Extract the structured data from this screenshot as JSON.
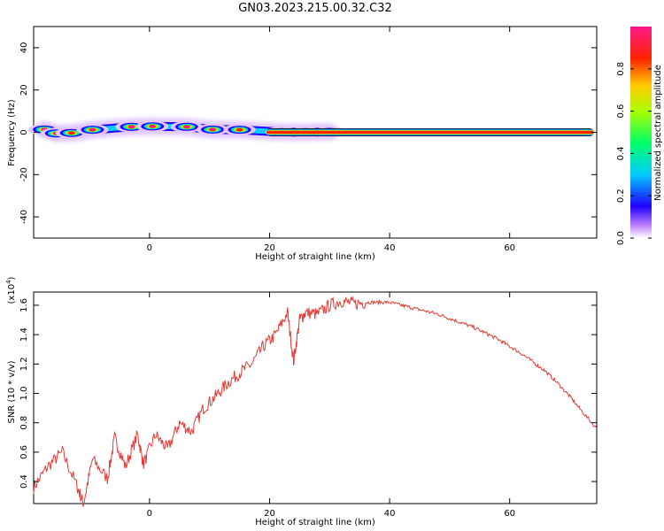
{
  "title": "GN03.2023.215.00.32.C32",
  "chart_data": [
    {
      "type": "heatmap",
      "xlabel": "Height of straight line (km)",
      "ylabel": "Frequency (Hz)",
      "xlim": [
        -19.3,
        74.5
      ],
      "ylim": [
        -50,
        50
      ],
      "xticks": [
        0,
        20,
        40,
        60
      ],
      "yticks": [
        -40,
        -20,
        0,
        20,
        40
      ],
      "colorbar": {
        "label": "Normalized spectral amplitude",
        "ticks": [
          "0.0",
          "0.2",
          "0.4",
          "0.6",
          "0.8"
        ],
        "range": [
          0,
          1
        ]
      },
      "blobs": [
        {
          "x": -17.5,
          "y": 1.3,
          "amp": 0.95
        },
        {
          "x": -15.5,
          "y": -0.5,
          "amp": 0.9
        },
        {
          "x": -13,
          "y": -0.3,
          "amp": 0.85
        },
        {
          "x": -9.5,
          "y": 1.2,
          "amp": 0.95
        },
        {
          "x": -3,
          "y": 2.6,
          "amp": 0.9
        },
        {
          "x": 0.5,
          "y": 2.8,
          "amp": 0.9
        },
        {
          "x": 6.2,
          "y": 2.6,
          "amp": 0.9
        },
        {
          "x": 10.5,
          "y": 1.3,
          "amp": 0.9
        },
        {
          "x": 15,
          "y": 1.2,
          "amp": 0.85
        },
        {
          "x": 22,
          "y": 0.1,
          "amp": 0.95
        },
        {
          "x": 26,
          "y": 0.1,
          "amp": 0.85
        },
        {
          "x": 30,
          "y": 0.2,
          "amp": 0.95
        }
      ],
      "band": {
        "x_start": 19.5,
        "x_end": 74,
        "y": 0,
        "amp": 1.0
      }
    },
    {
      "type": "line",
      "xlabel": "Height of straight line (km)",
      "ylabel": "SNR (10 * v/v)",
      "yscale_label": "(x10^4)",
      "xlim": [
        -19.3,
        74.5
      ],
      "ylim": [
        0.25,
        1.69
      ],
      "xticks": [
        0,
        20,
        40,
        60
      ],
      "yticks": [
        0.4,
        0.6,
        0.8,
        1.0,
        1.2,
        1.4,
        1.6
      ],
      "color": "#e53935",
      "series": [
        {
          "x": [
            -19.3,
            -17,
            -14.5,
            -12,
            -11,
            -9.5,
            -7,
            -5.8,
            -4,
            -2,
            -1,
            1,
            3,
            5,
            7,
            9,
            11,
            13,
            15,
            17,
            19,
            21,
            23,
            24,
            25,
            26,
            28,
            30,
            32,
            34,
            36,
            38,
            40,
            42,
            44,
            46,
            48,
            50,
            52,
            54,
            56,
            58,
            60,
            62,
            64,
            66,
            68,
            70,
            72,
            74.5
          ],
          "values": [
            0.36,
            0.5,
            0.6,
            0.36,
            0.25,
            0.55,
            0.42,
            0.7,
            0.5,
            0.72,
            0.52,
            0.72,
            0.62,
            0.8,
            0.74,
            0.9,
            0.98,
            1.07,
            1.14,
            1.2,
            1.32,
            1.4,
            1.55,
            1.22,
            1.5,
            1.55,
            1.54,
            1.6,
            1.63,
            1.61,
            1.62,
            1.62,
            1.62,
            1.6,
            1.58,
            1.56,
            1.54,
            1.51,
            1.48,
            1.45,
            1.41,
            1.37,
            1.32,
            1.27,
            1.21,
            1.15,
            1.07,
            0.98,
            0.88,
            0.76
          ]
        }
      ]
    }
  ]
}
